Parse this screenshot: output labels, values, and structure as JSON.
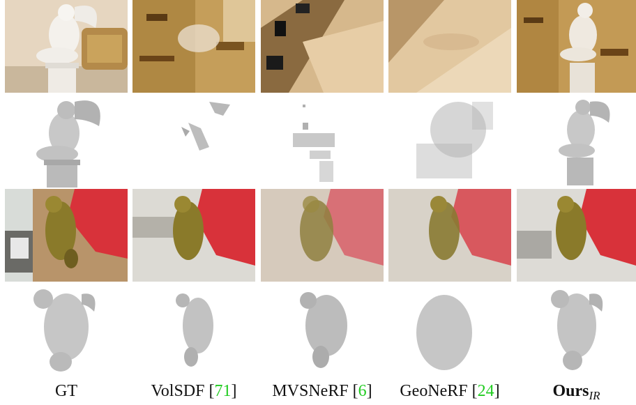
{
  "figure": {
    "columns": [
      {
        "label": "GT",
        "cite": ""
      },
      {
        "label": "VolSDF [",
        "cite": "71",
        "suffix": "]"
      },
      {
        "label": "MVSNeRF [",
        "cite": "6",
        "suffix": "]"
      },
      {
        "label": "GeoNeRF [",
        "cite": "24",
        "suffix": "]"
      },
      {
        "label": "Ours",
        "subscript": "IR"
      }
    ],
    "rows": [
      "angel-render",
      "angel-mesh",
      "tiger-render",
      "tiger-mesh"
    ]
  },
  "colors": {
    "cite_green": "#22cc22",
    "tablecloth_red": "#d8323a",
    "bronze": "#8a7a2a",
    "mesh_gray": "#a9a9a9",
    "beige": "#e8d2b0"
  }
}
